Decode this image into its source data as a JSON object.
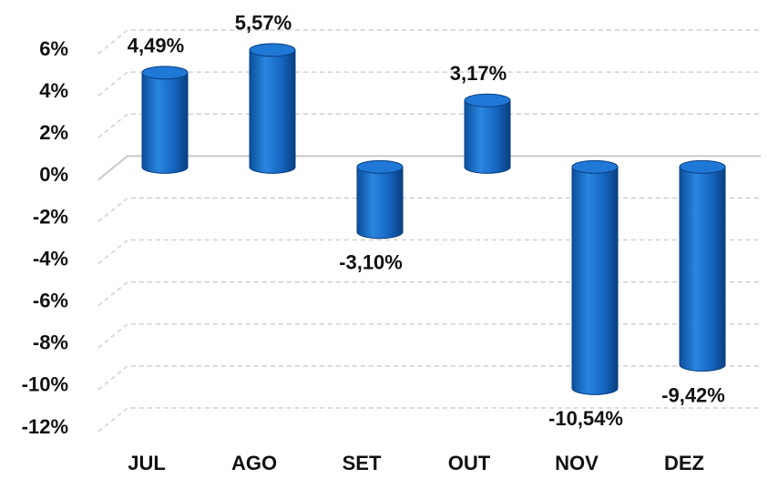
{
  "chart_data": {
    "type": "bar",
    "categories": [
      "JUL",
      "AGO",
      "SET",
      "OUT",
      "NOV",
      "DEZ"
    ],
    "values": [
      4.49,
      5.57,
      -3.1,
      3.17,
      -10.54,
      -9.42
    ],
    "value_labels": [
      "4,49%",
      "5,57%",
      "-3,10%",
      "3,17%",
      "-10,54%",
      "-9,42%"
    ],
    "color": "#1565c0",
    "ylim": [
      -12,
      6
    ],
    "yticks": [
      {
        "value": -12,
        "label": "-12%"
      },
      {
        "value": -10,
        "label": "-10%"
      },
      {
        "value": -8,
        "label": "-8%"
      },
      {
        "value": -6,
        "label": "-6%"
      },
      {
        "value": -4,
        "label": "-4%"
      },
      {
        "value": -2,
        "label": "-2%"
      },
      {
        "value": 0,
        "label": "0%"
      },
      {
        "value": 2,
        "label": "2%"
      },
      {
        "value": 4,
        "label": "4%"
      },
      {
        "value": 6,
        "label": "6%"
      }
    ],
    "grid": true
  }
}
